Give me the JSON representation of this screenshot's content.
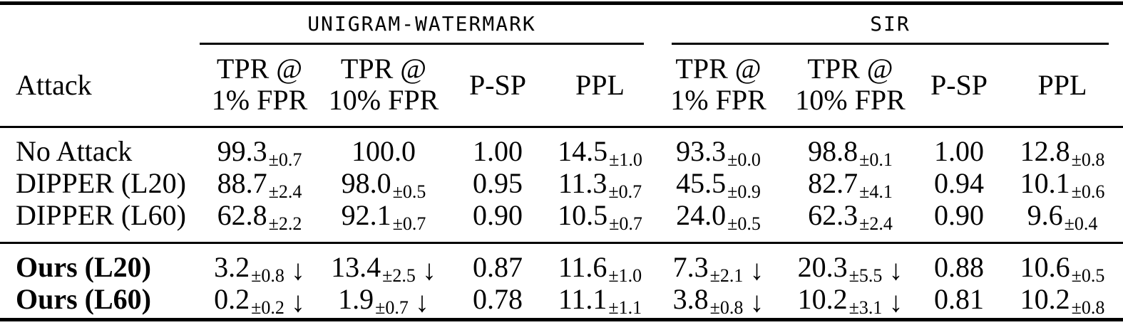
{
  "colors": {
    "text": "#000000",
    "background": "#ffffff"
  },
  "table": {
    "group_headers": [
      {
        "label": "UNIGRAM-WATERMARK"
      },
      {
        "label": "SIR"
      }
    ],
    "columns": {
      "attack": "Attack",
      "tpr1": {
        "line1": "TPR @",
        "line2": "1% FPR"
      },
      "tpr10": {
        "line1": "TPR @",
        "line2": "10% FPR"
      },
      "psp": "P-SP",
      "ppl": "PPL"
    },
    "rows": [
      {
        "label": "No Attack",
        "bold": false,
        "cells": [
          {
            "main": "99.3",
            "sub": "±0.7",
            "arrow": ""
          },
          {
            "main": "100.0",
            "sub": "",
            "arrow": ""
          },
          {
            "main": "1.00",
            "sub": "",
            "arrow": ""
          },
          {
            "main": "14.5",
            "sub": "±1.0",
            "arrow": ""
          },
          {
            "main": "93.3",
            "sub": "±0.0",
            "arrow": ""
          },
          {
            "main": "98.8",
            "sub": "±0.1",
            "arrow": ""
          },
          {
            "main": "1.00",
            "sub": "",
            "arrow": ""
          },
          {
            "main": "12.8",
            "sub": "±0.8",
            "arrow": ""
          }
        ]
      },
      {
        "label": "DIPPER (L20)",
        "bold": false,
        "cells": [
          {
            "main": "88.7",
            "sub": "±2.4",
            "arrow": ""
          },
          {
            "main": "98.0",
            "sub": "±0.5",
            "arrow": ""
          },
          {
            "main": "0.95",
            "sub": "",
            "arrow": ""
          },
          {
            "main": "11.3",
            "sub": "±0.7",
            "arrow": ""
          },
          {
            "main": "45.5",
            "sub": "±0.9",
            "arrow": ""
          },
          {
            "main": "82.7",
            "sub": "±4.1",
            "arrow": ""
          },
          {
            "main": "0.94",
            "sub": "",
            "arrow": ""
          },
          {
            "main": "10.1",
            "sub": "±0.6",
            "arrow": ""
          }
        ]
      },
      {
        "label": "DIPPER (L60)",
        "bold": false,
        "cells": [
          {
            "main": "62.8",
            "sub": "±2.2",
            "arrow": ""
          },
          {
            "main": "92.1",
            "sub": "±0.7",
            "arrow": ""
          },
          {
            "main": "0.90",
            "sub": "",
            "arrow": ""
          },
          {
            "main": "10.5",
            "sub": "±0.7",
            "arrow": ""
          },
          {
            "main": "24.0",
            "sub": "±0.5",
            "arrow": ""
          },
          {
            "main": "62.3",
            "sub": "±2.4",
            "arrow": ""
          },
          {
            "main": "0.90",
            "sub": "",
            "arrow": ""
          },
          {
            "main": "9.6",
            "sub": "±0.4",
            "arrow": ""
          }
        ]
      },
      {
        "label": "Ours (L20)",
        "bold": true,
        "cells": [
          {
            "main": "3.2",
            "sub": "±0.8",
            "arrow": "↓"
          },
          {
            "main": "13.4",
            "sub": "±2.5",
            "arrow": "↓"
          },
          {
            "main": "0.87",
            "sub": "",
            "arrow": ""
          },
          {
            "main": "11.6",
            "sub": "±1.0",
            "arrow": ""
          },
          {
            "main": "7.3",
            "sub": "±2.1",
            "arrow": "↓"
          },
          {
            "main": "20.3",
            "sub": "±5.5",
            "arrow": "↓"
          },
          {
            "main": "0.88",
            "sub": "",
            "arrow": ""
          },
          {
            "main": "10.6",
            "sub": "±0.5",
            "arrow": ""
          }
        ]
      },
      {
        "label": "Ours (L60)",
        "bold": true,
        "cells": [
          {
            "main": "0.2",
            "sub": "±0.2",
            "arrow": "↓"
          },
          {
            "main": "1.9",
            "sub": "±0.7",
            "arrow": "↓"
          },
          {
            "main": "0.78",
            "sub": "",
            "arrow": ""
          },
          {
            "main": "11.1",
            "sub": "±1.1",
            "arrow": ""
          },
          {
            "main": "3.8",
            "sub": "±0.8",
            "arrow": "↓"
          },
          {
            "main": "10.2",
            "sub": "±3.1",
            "arrow": "↓"
          },
          {
            "main": "0.81",
            "sub": "",
            "arrow": ""
          },
          {
            "main": "10.2",
            "sub": "±0.8",
            "arrow": ""
          }
        ]
      }
    ]
  }
}
